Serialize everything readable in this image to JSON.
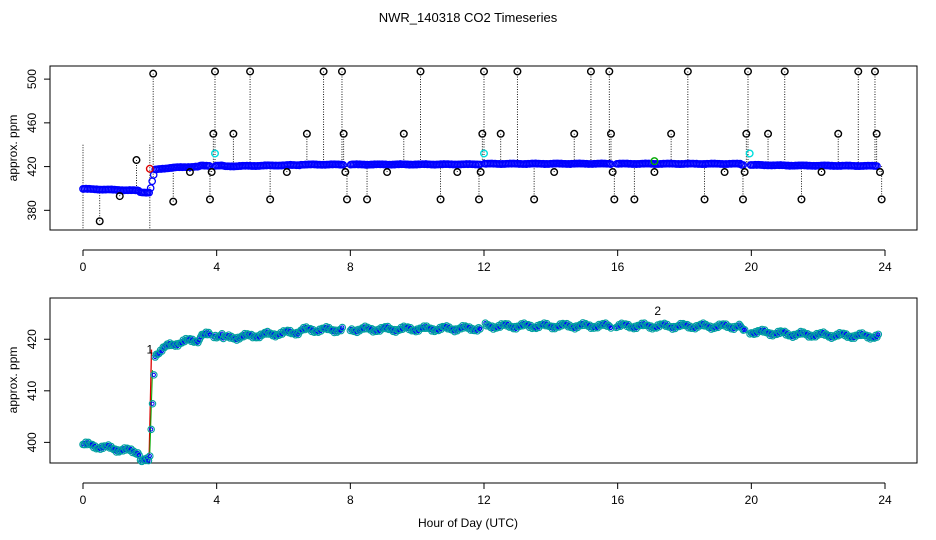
{
  "figure": {
    "title": "NWR_140318  CO2 Timeseries",
    "xlabel": "Hour of Day (UTC)"
  },
  "colors": {
    "outlier": "#000000",
    "data": "#0000ff",
    "ring": "#00a0a0",
    "flag_cyan": "#00dddd",
    "flag_green": "#00aa00",
    "flag_red": "#dd0000"
  },
  "chart_data": [
    {
      "type": "scatter",
      "panel": "top",
      "xlabel": "",
      "ylabel": "approx. ppm",
      "xlim": [
        0,
        24
      ],
      "ylim": [
        362,
        512
      ],
      "xticks": [
        0,
        4,
        8,
        12,
        16,
        20,
        24
      ],
      "yticks": [
        380,
        420,
        460,
        500
      ],
      "grid": false,
      "outliers": [
        {
          "x": 0.5,
          "y": 370
        },
        {
          "x": 1.1,
          "y": 393
        },
        {
          "x": 1.6,
          "y": 426
        },
        {
          "x": 2.1,
          "y": 505
        },
        {
          "x": 2.7,
          "y": 388
        },
        {
          "x": 3.2,
          "y": 415
        },
        {
          "x": 3.8,
          "y": 390
        },
        {
          "x": 3.85,
          "y": 415
        },
        {
          "x": 3.9,
          "y": 450
        },
        {
          "x": 3.95,
          "y": 507
        },
        {
          "x": 4.5,
          "y": 450
        },
        {
          "x": 5.0,
          "y": 507
        },
        {
          "x": 5.6,
          "y": 390
        },
        {
          "x": 6.1,
          "y": 415
        },
        {
          "x": 6.7,
          "y": 450
        },
        {
          "x": 7.2,
          "y": 507
        },
        {
          "x": 7.75,
          "y": 507
        },
        {
          "x": 7.8,
          "y": 450
        },
        {
          "x": 7.85,
          "y": 415
        },
        {
          "x": 7.9,
          "y": 390
        },
        {
          "x": 8.5,
          "y": 390
        },
        {
          "x": 9.1,
          "y": 415
        },
        {
          "x": 9.6,
          "y": 450
        },
        {
          "x": 10.1,
          "y": 507
        },
        {
          "x": 10.7,
          "y": 390
        },
        {
          "x": 11.2,
          "y": 415
        },
        {
          "x": 11.85,
          "y": 390
        },
        {
          "x": 11.9,
          "y": 415
        },
        {
          "x": 11.95,
          "y": 450
        },
        {
          "x": 12.0,
          "y": 507
        },
        {
          "x": 12.5,
          "y": 450
        },
        {
          "x": 13.0,
          "y": 507
        },
        {
          "x": 13.5,
          "y": 390
        },
        {
          "x": 14.1,
          "y": 415
        },
        {
          "x": 14.7,
          "y": 450
        },
        {
          "x": 15.2,
          "y": 507
        },
        {
          "x": 15.75,
          "y": 507
        },
        {
          "x": 15.8,
          "y": 450
        },
        {
          "x": 15.85,
          "y": 415
        },
        {
          "x": 15.9,
          "y": 390
        },
        {
          "x": 16.5,
          "y": 390
        },
        {
          "x": 17.1,
          "y": 415
        },
        {
          "x": 17.6,
          "y": 450
        },
        {
          "x": 18.1,
          "y": 507
        },
        {
          "x": 18.6,
          "y": 390
        },
        {
          "x": 19.2,
          "y": 415
        },
        {
          "x": 19.75,
          "y": 390
        },
        {
          "x": 19.8,
          "y": 415
        },
        {
          "x": 19.85,
          "y": 450
        },
        {
          "x": 19.9,
          "y": 507
        },
        {
          "x": 20.5,
          "y": 450
        },
        {
          "x": 21.0,
          "y": 507
        },
        {
          "x": 21.5,
          "y": 390
        },
        {
          "x": 22.1,
          "y": 415
        },
        {
          "x": 22.6,
          "y": 450
        },
        {
          "x": 23.2,
          "y": 507
        },
        {
          "x": 23.7,
          "y": 507
        },
        {
          "x": 23.75,
          "y": 450
        },
        {
          "x": 23.85,
          "y": 415
        },
        {
          "x": 23.9,
          "y": 390
        }
      ],
      "flags": [
        {
          "x": 3.95,
          "y": 432,
          "color": "cyan"
        },
        {
          "x": 12.0,
          "y": 432,
          "color": "cyan"
        },
        {
          "x": 19.95,
          "y": 432,
          "color": "cyan"
        },
        {
          "x": 17.1,
          "y": 425,
          "color": "green"
        },
        {
          "x": 2.0,
          "y": 418,
          "color": "red"
        }
      ]
    },
    {
      "type": "scatter",
      "panel": "bottom",
      "xlabel": "",
      "ylabel": "approx. ppm",
      "xlim": [
        0,
        24
      ],
      "ylim": [
        396,
        428
      ],
      "xticks": [
        0,
        4,
        8,
        12,
        16,
        20,
        24
      ],
      "yticks": [
        400,
        410,
        420
      ],
      "grid": false,
      "annotations": [
        {
          "x": 17.2,
          "y": 425.5,
          "text": "2",
          "color": "green"
        },
        {
          "x": 2.0,
          "y": 418,
          "text": "1",
          "color": "red"
        }
      ]
    }
  ]
}
